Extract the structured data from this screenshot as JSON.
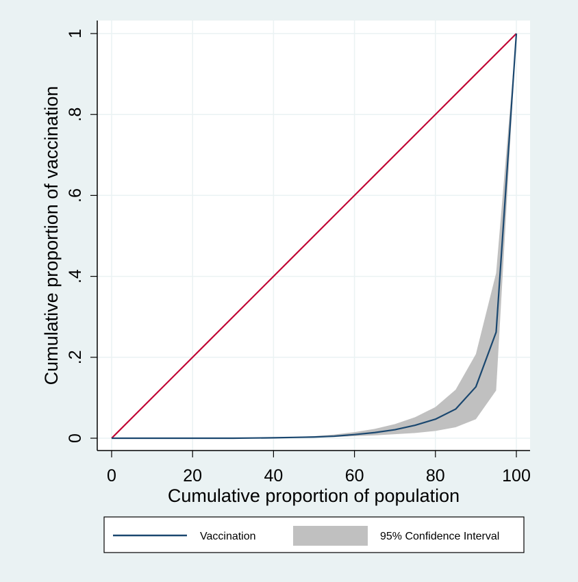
{
  "chart_data": {
    "type": "area",
    "xlabel": "Cumulative proportion of population",
    "ylabel": "Cumulative proportion of vaccination",
    "xlim": [
      0,
      100
    ],
    "ylim": [
      0,
      1
    ],
    "x_ticks": [
      "0",
      "20",
      "40",
      "60",
      "80",
      "100"
    ],
    "y_ticks": [
      "0",
      ".2",
      ".4",
      ".6",
      ".8",
      "1"
    ],
    "grid": true,
    "legend_position": "bottom",
    "x": [
      0,
      5,
      10,
      15,
      20,
      25,
      30,
      35,
      40,
      45,
      50,
      55,
      60,
      65,
      70,
      75,
      80,
      85,
      90,
      95,
      100
    ],
    "series": [
      {
        "name": "Vaccination",
        "type": "line",
        "color": "#1a476f",
        "values": [
          0,
          0,
          0,
          0,
          0,
          0,
          0,
          0.0005,
          0.001,
          0.002,
          0.003,
          0.005,
          0.009,
          0.014,
          0.021,
          0.032,
          0.047,
          0.072,
          0.127,
          0.262,
          1.0
        ]
      },
      {
        "name": "95% Confidence Interval",
        "type": "band",
        "color": "#c0c0c0",
        "lower": [
          0,
          0,
          0,
          0,
          0,
          0,
          0,
          0,
          0,
          0.001,
          0.002,
          0.003,
          0.005,
          0.007,
          0.01,
          0.013,
          0.018,
          0.027,
          0.047,
          0.118,
          1.0
        ],
        "upper": [
          0,
          0,
          0,
          0,
          0,
          0,
          0,
          0.001,
          0.002,
          0.003,
          0.005,
          0.009,
          0.015,
          0.023,
          0.035,
          0.052,
          0.077,
          0.12,
          0.208,
          0.408,
          1.0
        ]
      },
      {
        "name": "",
        "type": "line",
        "color": "#c10534",
        "x": [
          0,
          100
        ],
        "values": [
          0,
          1
        ]
      }
    ]
  }
}
